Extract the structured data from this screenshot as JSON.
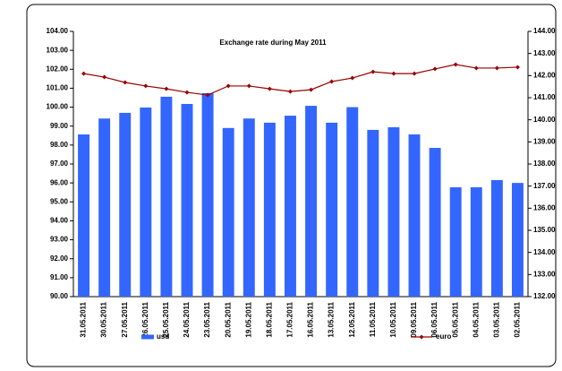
{
  "chart_data": {
    "type": "bar",
    "title": "Exchange rate during May 2011",
    "categories": [
      "31.05.2011",
      "30.05.2011",
      "27.05.2011",
      "26.05.2011",
      "25.05.2011",
      "24.05.2011",
      "23.05.2011",
      "20.05.2011",
      "19.05.2011",
      "18.05.2011",
      "17.05.2011",
      "16.05.2011",
      "13.05.2011",
      "12.05.2011",
      "11.05.2011",
      "10.05.2011",
      "09.05.2011",
      "06.05.2011",
      "05.05.2011",
      "04.05.2011",
      "03.05.2011",
      "02.05.2011"
    ],
    "series": [
      {
        "name": "usd",
        "color": "#3366ff",
        "values": [
          98.56,
          99.4,
          99.7,
          99.98,
          100.55,
          100.17,
          100.74,
          98.9,
          99.4,
          99.18,
          99.55,
          100.07,
          99.18,
          100.0,
          98.8,
          98.94,
          98.56,
          97.85,
          95.77,
          95.77,
          96.15,
          96.0
        ]
      },
      {
        "name": "euro",
        "color": "#990000",
        "type": "line",
        "axis": "y2",
        "values": [
          142.09,
          141.93,
          141.69,
          141.53,
          141.4,
          141.24,
          141.12,
          141.53,
          141.53,
          141.4,
          141.28,
          141.36,
          141.73,
          141.89,
          142.17,
          142.09,
          142.09,
          142.3,
          142.5,
          142.34,
          142.34,
          142.38
        ]
      }
    ],
    "ylim": [
      90,
      104
    ],
    "yticks": [
      {
        "value": 90,
        "label": "90.00"
      },
      {
        "value": 91,
        "label": "91.00"
      },
      {
        "value": 92,
        "label": "92.00"
      },
      {
        "value": 93,
        "label": "93.00"
      },
      {
        "value": 94,
        "label": "94.00"
      },
      {
        "value": 95,
        "label": "95.00"
      },
      {
        "value": 96,
        "label": "96.00"
      },
      {
        "value": 97,
        "label": "97.00"
      },
      {
        "value": 98,
        "label": "98.00"
      },
      {
        "value": 99,
        "label": "99.00"
      },
      {
        "value": 100,
        "label": "100.00"
      },
      {
        "value": 101,
        "label": "101.00"
      },
      {
        "value": 102,
        "label": "102.00"
      },
      {
        "value": 103,
        "label": "103.00"
      },
      {
        "value": 104,
        "label": "104.00"
      }
    ],
    "y2lim": [
      132,
      144
    ],
    "y2ticks": [
      {
        "value": 132,
        "label": "132.00"
      },
      {
        "value": 133,
        "label": "133.00"
      },
      {
        "value": 134,
        "label": "134.00"
      },
      {
        "value": 135,
        "label": "135.00"
      },
      {
        "value": 136,
        "label": "136.00"
      },
      {
        "value": 137,
        "label": "137.00"
      },
      {
        "value": 138,
        "label": "138.00"
      },
      {
        "value": 139,
        "label": "139.00"
      },
      {
        "value": 140,
        "label": "140.00"
      },
      {
        "value": 141,
        "label": "141.00"
      },
      {
        "value": 142,
        "label": "142.00"
      },
      {
        "value": 143,
        "label": "143.00"
      },
      {
        "value": 144,
        "label": "144.00"
      }
    ],
    "grid": false,
    "legend": "bottom"
  }
}
